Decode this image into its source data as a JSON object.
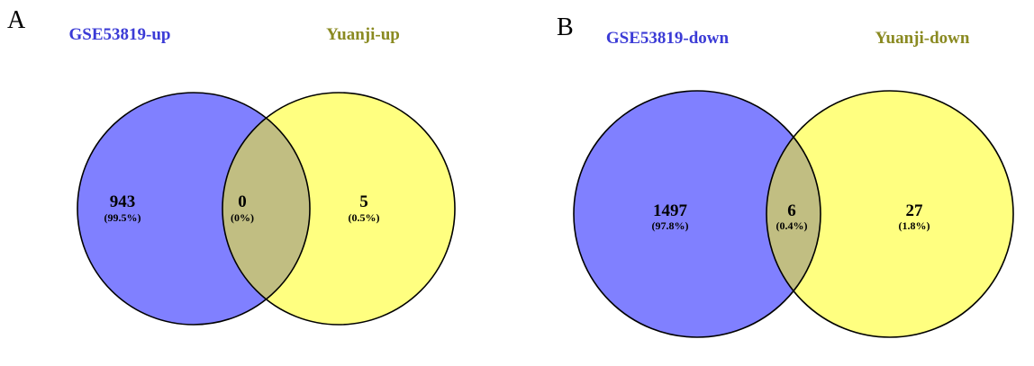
{
  "colors": {
    "left_fill": "#8080ff",
    "right_fill": "#ffff80",
    "overlap_fill": "#c1be82",
    "left_title": "#3b3bd6",
    "right_title": "#8a8a21",
    "outline": "#000000"
  },
  "panels": [
    {
      "letter": "A",
      "left_set": {
        "name": "GSE53819-up",
        "count": "943",
        "percent": "(99.5%)"
      },
      "right_set": {
        "name": "Yuanji-up",
        "count": "5",
        "percent": "(0.5%)"
      },
      "overlap": {
        "count": "0",
        "percent": "(0%)"
      }
    },
    {
      "letter": "B",
      "left_set": {
        "name": "GSE53819-down",
        "count": "1497",
        "percent": "(97.8%)"
      },
      "right_set": {
        "name": "Yuanji-down",
        "count": "27",
        "percent": "(1.8%)"
      },
      "overlap": {
        "count": "6",
        "percent": "(0.4%)"
      }
    }
  ]
}
